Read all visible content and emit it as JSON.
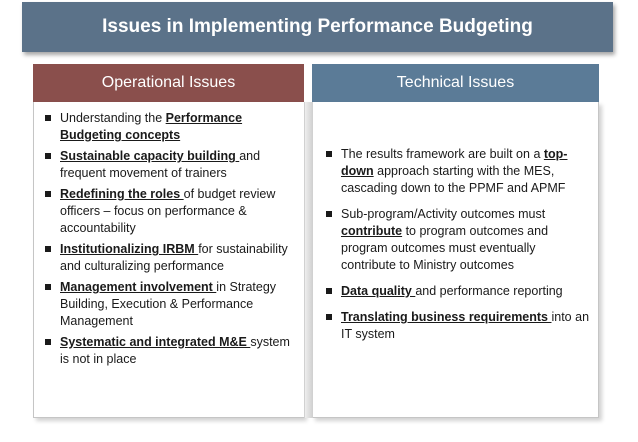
{
  "title": "Issues in Implementing Performance Budgeting",
  "operational": {
    "header": "Operational Issues",
    "items": [
      {
        "pre": "Understanding the ",
        "bold": "Performance Budgeting concepts",
        "post": ""
      },
      {
        "pre": "",
        "bold": "Sustainable capacity building ",
        "post": "and frequent movement of trainers"
      },
      {
        "pre": "",
        "bold": "Redefining the roles ",
        "post": "of budget review officers – focus on performance & accountability"
      },
      {
        "pre": "",
        "bold": "Institutionalizing IRBM ",
        "post": "for sustainability and culturalizing performance"
      },
      {
        "pre": "",
        "bold": "Management involvement ",
        "post": "in Strategy Building, Execution & Performance Management"
      },
      {
        "pre": "",
        "bold": "Systematic and integrated M&E ",
        "post": "system is not in place"
      }
    ]
  },
  "technical": {
    "header": "Technical Issues",
    "items": [
      {
        "pre": "The results framework are built on a ",
        "bold": "top-down",
        "post": " approach starting with the MES, cascading down to the PPMF and APMF"
      },
      {
        "pre": "Sub-program/Activity outcomes must ",
        "bold": "contribute",
        "post": " to program outcomes and program outcomes must eventually contribute to Ministry outcomes"
      },
      {
        "pre": "",
        "bold": "Data quality ",
        "post": "and performance reporting"
      },
      {
        "pre": "",
        "bold": "Translating business requirements ",
        "post": "into an IT system"
      }
    ]
  }
}
